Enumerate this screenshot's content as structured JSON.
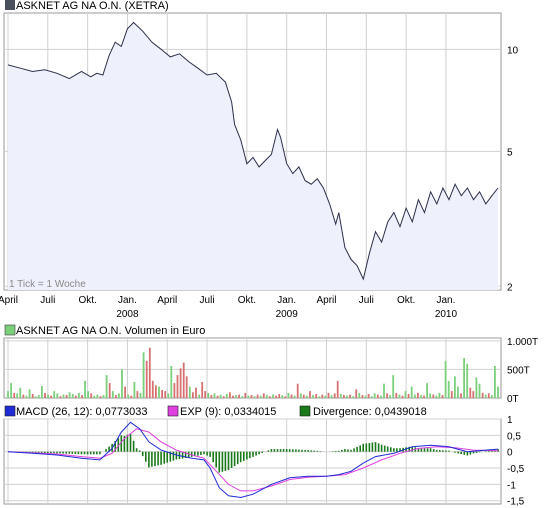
{
  "colors": {
    "price_line": "#2b2f4a",
    "price_fill": "#eef0fb",
    "grid": "#d0d0d0",
    "volume_up": "#7ad07a",
    "volume_down": "#d77070",
    "macd": "#1f2bd6",
    "signal": "#e040e0",
    "divergence": "#1a7a1a",
    "legend_box_dark": "#4a4f5e"
  },
  "price_panel": {
    "title": "ASKNET AG NA O.N. (XETRA)",
    "scale_note": "1 Tick = 1 Woche"
  },
  "volume_panel": {
    "title": "ASKNET AG NA O.N. Volumen in Euro"
  },
  "macd_panel": {
    "macd_label": "MACD (26, 12): 0,0773033",
    "exp_label": "EXP (9): 0,0334015",
    "div_label": "Divergence: 0,0439018"
  },
  "chart_data": [
    {
      "type": "line",
      "title": "ASKNET AG NA O.N. (XETRA)",
      "log_scale": true,
      "y_ticks": [
        "10",
        "5",
        "2"
      ],
      "y_tick_values": [
        10,
        5,
        2
      ],
      "x_ticks": [
        "April",
        "Juli",
        "Okt.",
        "Jan.",
        "April",
        "Juli",
        "Okt.",
        "Jan.",
        "April",
        "Juli",
        "Okt.",
        "Jan."
      ],
      "x_tick_years": [
        {
          "label": "2008",
          "at": "Jan."
        },
        {
          "label": "2009",
          "at": "Jan."
        },
        {
          "label": "2010",
          "at": "Jan."
        }
      ],
      "x_tick_weeks": [
        0,
        13,
        26,
        39,
        52,
        65,
        78,
        91,
        104,
        117,
        130,
        143
      ],
      "series": [
        {
          "week": [
            0,
            4,
            8,
            12,
            16,
            20,
            24,
            27,
            29,
            31,
            33,
            35,
            37,
            39,
            41,
            44,
            47,
            50,
            53,
            56,
            59,
            62,
            65,
            68,
            71,
            73,
            74,
            76,
            78,
            80,
            82,
            84,
            86,
            88,
            89,
            91,
            93,
            95,
            97,
            99,
            101,
            103,
            105,
            107,
            108,
            110,
            112,
            114,
            116,
            118,
            120,
            122,
            124,
            126,
            128,
            130,
            132,
            134,
            136,
            138,
            140,
            142,
            144,
            146,
            148,
            150,
            152,
            154,
            156,
            158,
            160
          ],
          "values": [
            9.0,
            8.8,
            8.6,
            8.7,
            8.5,
            8.2,
            8.6,
            8.3,
            8.5,
            8.4,
            9.6,
            10.5,
            10.2,
            11.5,
            12.0,
            11.3,
            10.5,
            10.0,
            9.5,
            9.7,
            9.2,
            8.8,
            8.4,
            8.5,
            8.0,
            7.0,
            6.0,
            5.4,
            4.6,
            4.8,
            4.5,
            4.7,
            4.9,
            5.8,
            5.5,
            4.6,
            4.3,
            4.5,
            4.1,
            4.0,
            4.15,
            3.9,
            3.5,
            3.05,
            3.3,
            2.6,
            2.4,
            2.3,
            2.1,
            2.5,
            2.9,
            2.7,
            3.1,
            3.3,
            3.0,
            3.4,
            3.1,
            3.6,
            3.3,
            3.8,
            3.5,
            3.9,
            3.6,
            4.0,
            3.7,
            3.9,
            3.6,
            3.8,
            3.5,
            3.7,
            3.9
          ]
        }
      ]
    },
    {
      "type": "bar",
      "title": "ASKNET AG NA O.N. Volumen in Euro",
      "y_ticks": [
        "1.000T",
        "500T",
        "0T"
      ],
      "y_tick_values": [
        1000,
        500,
        0
      ],
      "unit": "T",
      "series": [
        {
          "name": "Volumen",
          "values": [
            120,
            260,
            90,
            80,
            180,
            60,
            40,
            150,
            70,
            30,
            50,
            210,
            90,
            60,
            40,
            120,
            80,
            30,
            60,
            50,
            100,
            70,
            40,
            90,
            50,
            300,
            120,
            80,
            40,
            60,
            30,
            50,
            400,
            260,
            120,
            50,
            80,
            500,
            200,
            60,
            40,
            280,
            120,
            90,
            800,
            650,
            880,
            300,
            220,
            200,
            140,
            120,
            80,
            560,
            260,
            400,
            520,
            620,
            380,
            200,
            100,
            180,
            60,
            280,
            120,
            90,
            50,
            80,
            40,
            60,
            30,
            70,
            100,
            40,
            50,
            60,
            30,
            90,
            40,
            50,
            30,
            60,
            40,
            80,
            50,
            30,
            60,
            40,
            70,
            50,
            30,
            90,
            60,
            40,
            250,
            80,
            60,
            40,
            120,
            50,
            70,
            30,
            60,
            40,
            90,
            50,
            80,
            300,
            70,
            50,
            40,
            60,
            30,
            150,
            90,
            50,
            40,
            70,
            30,
            80,
            60,
            40,
            250,
            80,
            50,
            400,
            90,
            60,
            40,
            120,
            70,
            200,
            60,
            90,
            50,
            40,
            260,
            80,
            60,
            40,
            90,
            50,
            650,
            300,
            120,
            380,
            200,
            80,
            700,
            600,
            180,
            120,
            360,
            250,
            90,
            60,
            80,
            50,
            560,
            200
          ],
          "up": [
            1,
            1,
            0,
            1,
            1,
            0,
            1,
            1,
            0,
            1,
            1,
            1,
            0,
            1,
            0,
            1,
            1,
            0,
            1,
            0,
            1,
            1,
            0,
            1,
            0,
            1,
            1,
            0,
            1,
            1,
            0,
            1,
            1,
            0,
            1,
            0,
            1,
            1,
            0,
            1,
            0,
            1,
            0,
            1,
            1,
            0,
            0,
            0,
            0,
            1,
            0,
            0,
            1,
            1,
            0,
            0,
            0,
            0,
            0,
            1,
            0,
            0,
            1,
            0,
            0,
            1,
            0,
            1,
            0,
            1,
            0,
            1,
            0,
            0,
            1,
            0,
            1,
            0,
            1,
            0,
            1,
            0,
            1,
            0,
            1,
            0,
            1,
            0,
            0,
            1,
            0,
            1,
            0,
            1,
            0,
            1,
            0,
            1,
            0,
            1,
            0,
            1,
            0,
            1,
            0,
            1,
            0,
            0,
            1,
            0,
            1,
            0,
            1,
            0,
            1,
            0,
            1,
            0,
            1,
            1,
            0,
            1,
            1,
            0,
            1,
            1,
            0,
            1,
            0,
            1,
            0,
            1,
            1,
            0,
            1,
            0,
            1,
            1,
            0,
            1,
            1,
            0,
            1,
            1,
            0,
            1,
            1,
            0,
            1,
            1,
            0,
            0,
            1,
            1,
            0,
            1,
            0,
            1,
            1,
            1
          ]
        }
      ]
    },
    {
      "type": "line",
      "title": "MACD (26, 12)",
      "y_ticks": [
        "1",
        "0,5",
        "0",
        "-0,5",
        "-1",
        "-1,5"
      ],
      "y_tick_values": [
        1,
        0.5,
        0,
        -0.5,
        -1,
        -1.5
      ],
      "series": [
        {
          "name": "MACD (26, 12)",
          "week": [
            0,
            8,
            16,
            24,
            30,
            34,
            37,
            40,
            43,
            46,
            50,
            55,
            60,
            64,
            66,
            69,
            72,
            76,
            80,
            86,
            92,
            98,
            104,
            108,
            112,
            116,
            120,
            126,
            132,
            138,
            144,
            150,
            156,
            160
          ],
          "values": [
            0.0,
            -0.05,
            -0.1,
            -0.2,
            -0.25,
            0.1,
            0.6,
            0.9,
            0.7,
            0.3,
            0.05,
            -0.1,
            -0.2,
            -0.25,
            -0.5,
            -1.1,
            -1.35,
            -1.4,
            -1.3,
            -1.0,
            -0.8,
            -0.75,
            -0.75,
            -0.7,
            -0.6,
            -0.35,
            -0.15,
            -0.05,
            0.15,
            0.2,
            0.15,
            0.0,
            0.05,
            0.08
          ]
        },
        {
          "name": "EXP (9)",
          "week": [
            0,
            8,
            16,
            24,
            30,
            34,
            38,
            42,
            46,
            50,
            55,
            60,
            64,
            68,
            72,
            76,
            80,
            86,
            92,
            98,
            104,
            110,
            116,
            122,
            128,
            134,
            140,
            146,
            152,
            156,
            160
          ],
          "values": [
            0.0,
            -0.03,
            -0.07,
            -0.15,
            -0.2,
            -0.05,
            0.4,
            0.7,
            0.6,
            0.3,
            0.05,
            -0.1,
            -0.2,
            -0.6,
            -1.0,
            -1.2,
            -1.2,
            -1.05,
            -0.85,
            -0.78,
            -0.75,
            -0.7,
            -0.5,
            -0.25,
            -0.05,
            0.1,
            0.15,
            0.12,
            0.05,
            0.04,
            0.03
          ]
        }
      ]
    }
  ]
}
